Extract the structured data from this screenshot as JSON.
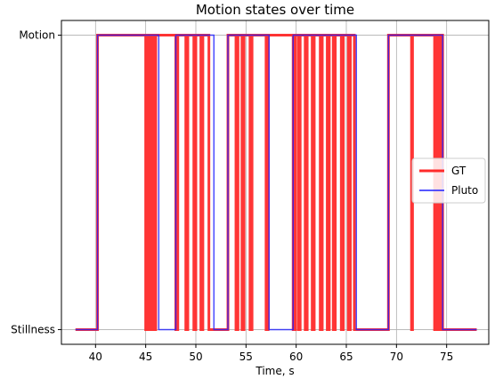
{
  "chart_data": {
    "type": "line",
    "title": "Motion states over time",
    "xlabel": "Time, s",
    "ylabel": "",
    "xlim": [
      36.6,
      79.2
    ],
    "ylim": [
      -0.05,
      1.05
    ],
    "x_ticks": [
      40,
      45,
      50,
      55,
      60,
      65,
      70,
      75
    ],
    "y_ticks": [
      {
        "value": 0,
        "label": "Stillness"
      },
      {
        "value": 1,
        "label": "Motion"
      }
    ],
    "grid": true,
    "legend": {
      "placement": "center-right"
    },
    "series": [
      {
        "name": "GT",
        "color": "#ff2a2a",
        "step": "post",
        "points": [
          [
            38.0,
            0
          ],
          [
            40.2,
            1
          ],
          [
            45.0,
            0
          ],
          [
            45.2,
            1
          ],
          [
            45.4,
            0
          ],
          [
            45.6,
            1
          ],
          [
            45.8,
            0
          ],
          [
            46.0,
            1
          ],
          [
            48.0,
            0
          ],
          [
            48.2,
            1
          ],
          [
            49.0,
            0
          ],
          [
            49.2,
            1
          ],
          [
            49.8,
            0
          ],
          [
            50.0,
            1
          ],
          [
            50.5,
            0
          ],
          [
            50.7,
            1
          ],
          [
            51.3,
            0
          ],
          [
            53.2,
            1
          ],
          [
            54.0,
            0
          ],
          [
            54.2,
            1
          ],
          [
            54.6,
            0
          ],
          [
            54.8,
            1
          ],
          [
            55.4,
            0
          ],
          [
            55.6,
            1
          ],
          [
            57.0,
            0
          ],
          [
            57.2,
            1
          ],
          [
            59.7,
            0
          ],
          [
            59.9,
            1
          ],
          [
            60.2,
            0
          ],
          [
            60.4,
            1
          ],
          [
            60.9,
            0
          ],
          [
            61.1,
            1
          ],
          [
            61.6,
            0
          ],
          [
            61.8,
            1
          ],
          [
            62.4,
            0
          ],
          [
            62.6,
            1
          ],
          [
            63.1,
            0
          ],
          [
            63.3,
            1
          ],
          [
            63.7,
            0
          ],
          [
            63.9,
            1
          ],
          [
            64.5,
            0
          ],
          [
            64.7,
            1
          ],
          [
            65.2,
            0
          ],
          [
            65.4,
            1
          ],
          [
            65.8,
            0
          ],
          [
            69.2,
            1
          ],
          [
            71.5,
            0
          ],
          [
            71.6,
            1
          ],
          [
            73.8,
            0
          ],
          [
            74.0,
            1
          ],
          [
            74.1,
            0
          ],
          [
            74.3,
            1
          ],
          [
            74.4,
            0
          ],
          [
            74.5,
            1
          ],
          [
            74.6,
            0
          ],
          [
            78.0,
            0
          ]
        ]
      },
      {
        "name": "Pluto",
        "color": "#1f1fff",
        "step": "post",
        "points": [
          [
            38.0,
            0
          ],
          [
            40.2,
            1
          ],
          [
            46.3,
            0
          ],
          [
            48.0,
            1
          ],
          [
            51.8,
            0
          ],
          [
            53.2,
            1
          ],
          [
            57.3,
            0
          ],
          [
            59.7,
            1
          ],
          [
            66.0,
            0
          ],
          [
            69.2,
            1
          ],
          [
            74.6,
            0
          ],
          [
            78.0,
            0
          ]
        ]
      }
    ]
  }
}
